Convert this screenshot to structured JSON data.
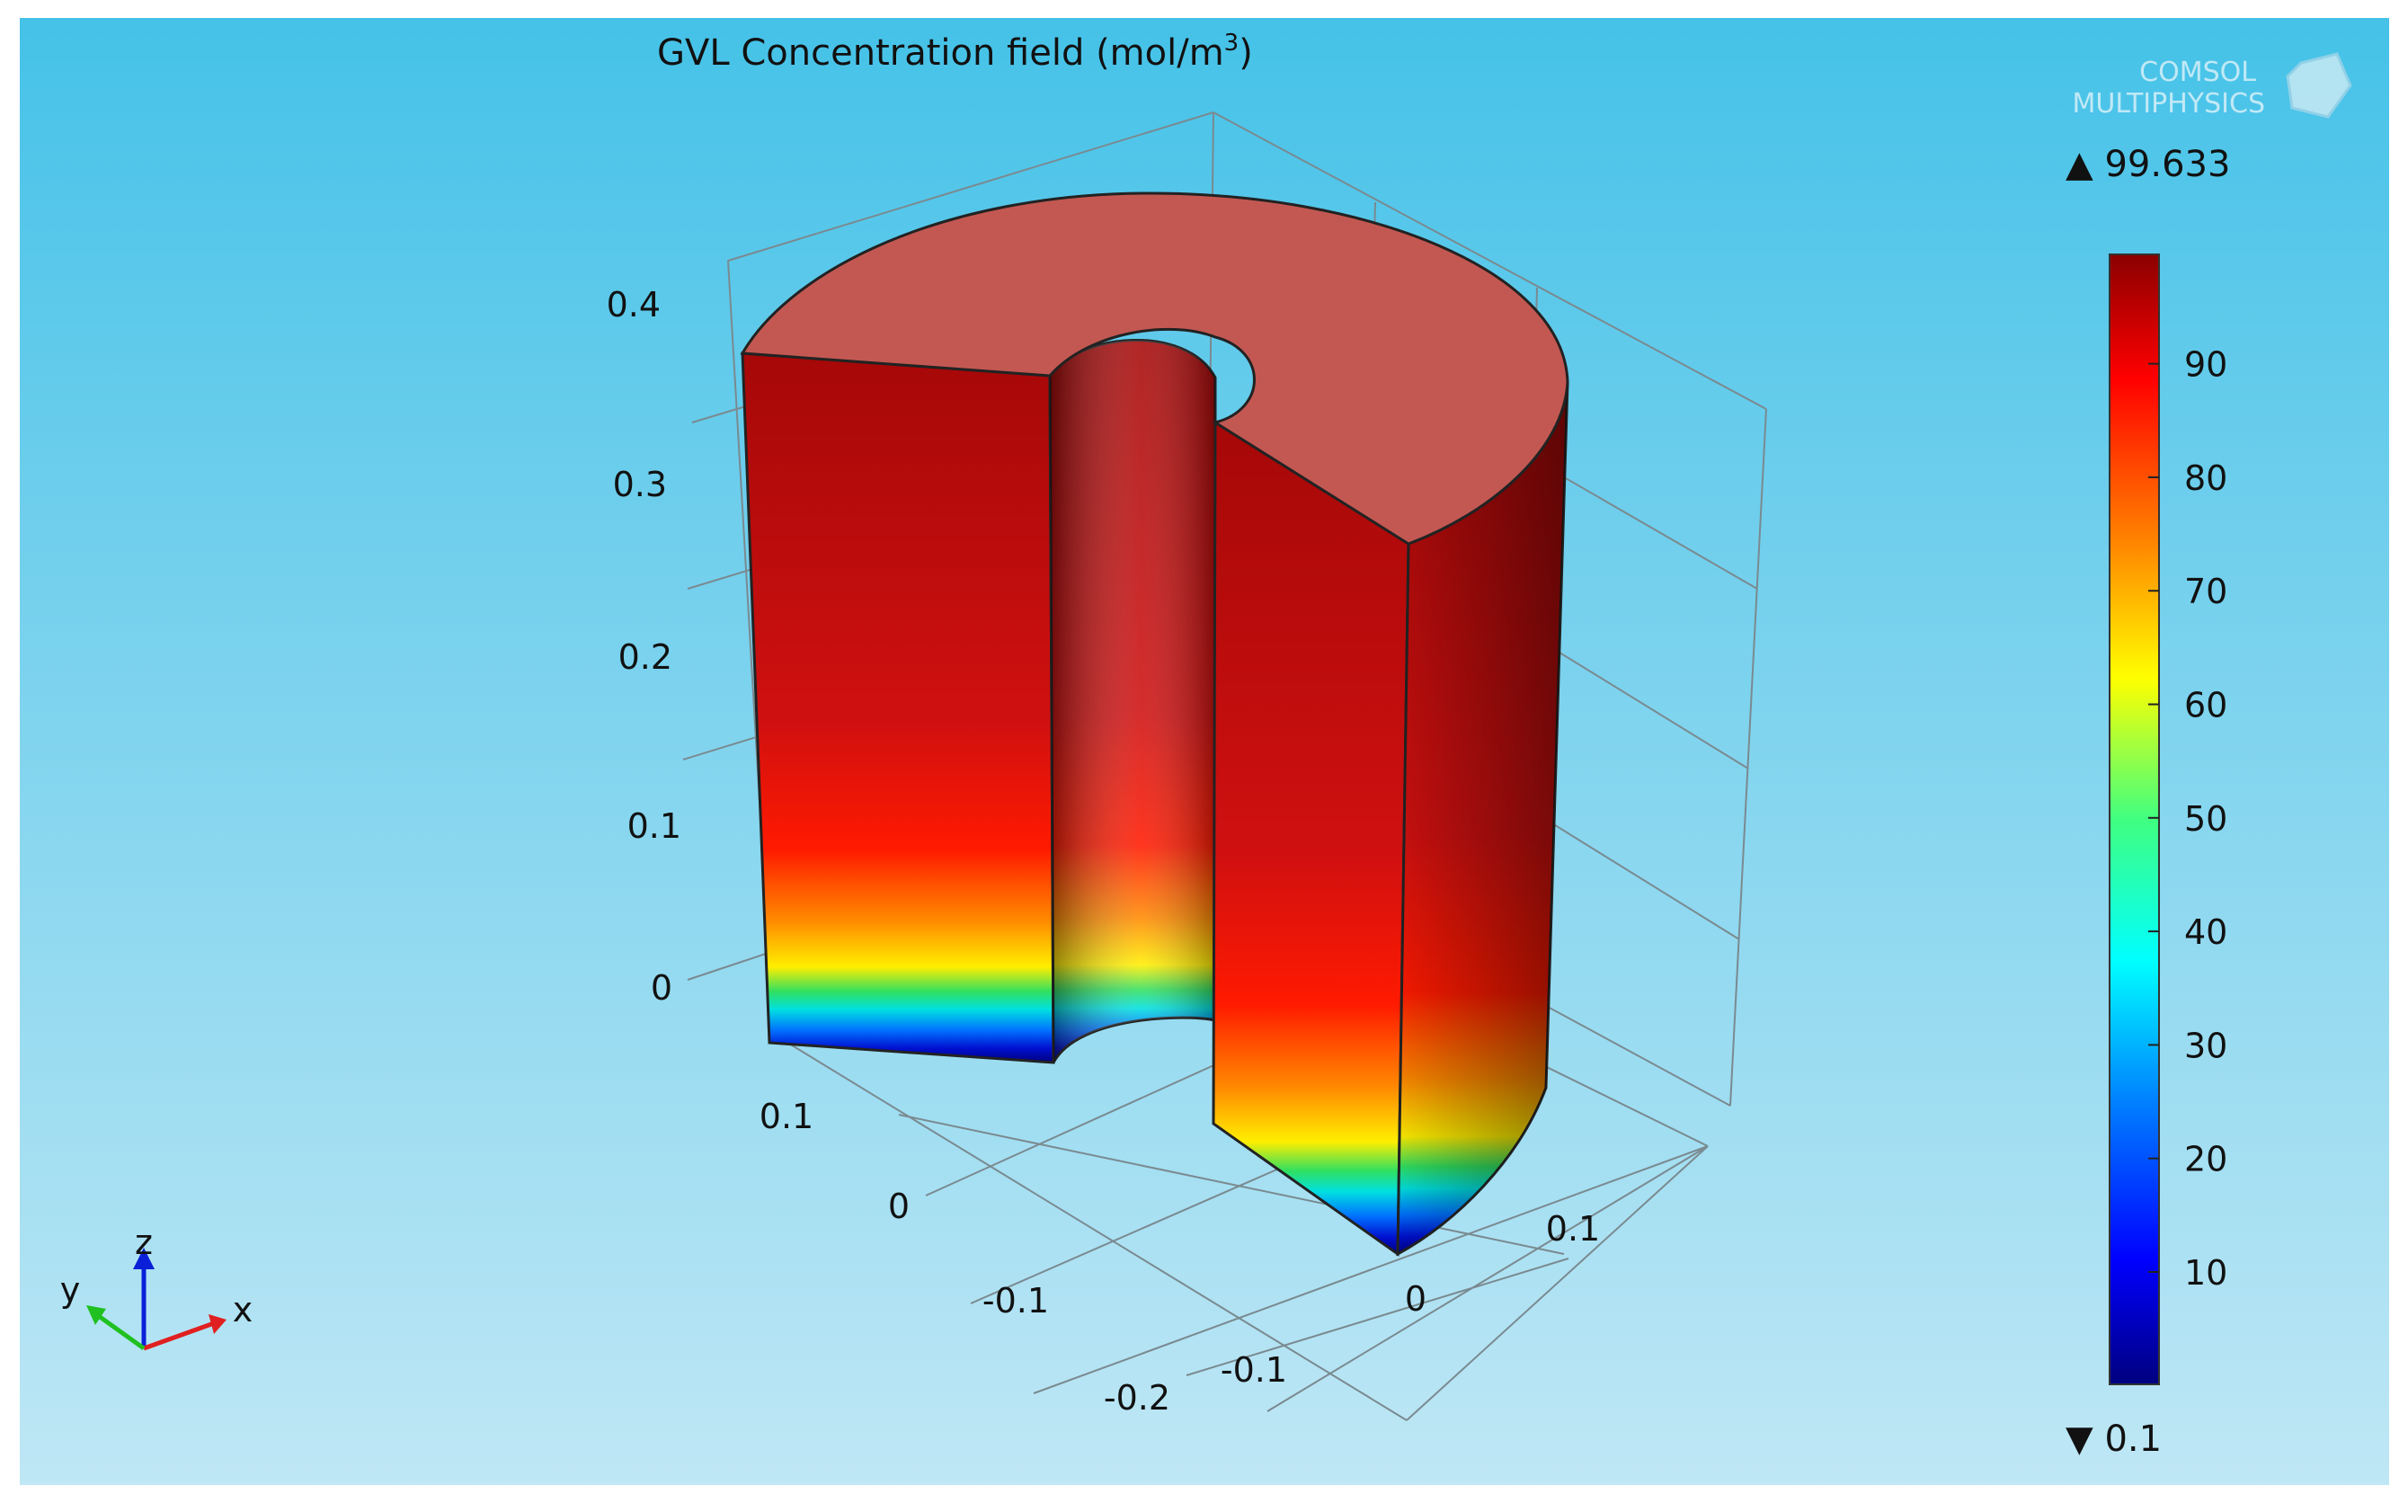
{
  "chart_data": {
    "type": "3d-surface",
    "title": "GVL Concentration field (mol/m",
    "title_superscript": "3",
    "title_suffix": ")",
    "brand": {
      "line1": "COMSOL",
      "line2": "MULTIPHYSICS"
    },
    "z_ticks": [
      "0.4",
      "0.3",
      "0.2",
      "0.1",
      "0"
    ],
    "y_ticks": [
      "0.1",
      "0",
      "-0.1",
      "-0.2"
    ],
    "x_ticks": [
      "-0.1",
      "0",
      "0.1"
    ],
    "colorbar": {
      "max_label": "99.633",
      "min_label": "0.1",
      "max": 99.633,
      "min": 0.1,
      "ticks": [
        "90",
        "80",
        "70",
        "60",
        "50",
        "40",
        "30",
        "20",
        "10"
      ],
      "tick_values": [
        90,
        80,
        70,
        60,
        50,
        40,
        30,
        20,
        10
      ]
    },
    "axes_triad": {
      "x": "x",
      "y": "y",
      "z": "z"
    },
    "colors": {
      "background_top": "#45c2e8",
      "background_bottom": "#bfe7f5",
      "top_face": "#c35852",
      "max_color": "#8b0000",
      "min_color": "#00007f"
    }
  }
}
